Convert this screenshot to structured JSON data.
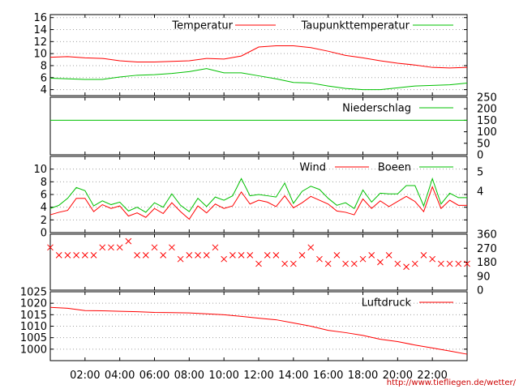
{
  "footer_url": "http://www.tiefliegen.de/wetter/",
  "colors": {
    "red": "#ff0000",
    "green": "#00c000",
    "grid": "#a0a0a0",
    "url": "#cc0000"
  },
  "x_axis": {
    "range_hours": [
      0,
      24
    ],
    "tick_labels": [
      "02:00",
      "04:00",
      "06:00",
      "08:00",
      "10:00",
      "12:00",
      "14:00",
      "16:00",
      "18:00",
      "20:00",
      "22:00"
    ],
    "tick_hours": [
      2,
      4,
      6,
      8,
      10,
      12,
      14,
      16,
      18,
      20,
      22
    ]
  },
  "chart_data": [
    {
      "type": "line",
      "panel": "temperature",
      "ylim": [
        3,
        16.5
      ],
      "yticks": [
        4,
        6,
        8,
        10,
        12,
        14,
        16
      ],
      "grid": true,
      "legend_placement": "top",
      "x": [
        0,
        1,
        2,
        3,
        4,
        5,
        6,
        7,
        8,
        9,
        10,
        11,
        12,
        13,
        14,
        15,
        16,
        17,
        18,
        19,
        20,
        21,
        22,
        23,
        24
      ],
      "series": [
        {
          "name": "Temperatur",
          "color": "#ff0000",
          "values": [
            9.4,
            9.5,
            9.3,
            9.2,
            8.8,
            8.6,
            8.6,
            8.7,
            8.8,
            9.2,
            9.1,
            9.6,
            11.1,
            11.3,
            11.3,
            11.0,
            10.4,
            9.7,
            9.3,
            8.8,
            8.4,
            8.1,
            7.7,
            7.6,
            7.7
          ]
        },
        {
          "name": "Taupunkttemperatur",
          "color": "#00c000",
          "values": [
            5.9,
            5.8,
            5.7,
            5.7,
            6.1,
            6.4,
            6.5,
            6.7,
            7.0,
            7.5,
            6.8,
            6.8,
            6.3,
            5.8,
            5.2,
            5.1,
            4.6,
            4.2,
            4.0,
            4.0,
            4.3,
            4.6,
            4.7,
            4.8,
            5.1
          ]
        }
      ]
    },
    {
      "type": "line",
      "panel": "precipitation",
      "ylim": [
        0,
        250
      ],
      "yticks": [
        0,
        50,
        100,
        150,
        200,
        250
      ],
      "grid": false,
      "legend_placement": "top-right",
      "x": [
        0,
        24
      ],
      "series": [
        {
          "name": "Niederschlag",
          "color": "#00c000",
          "values": [
            150,
            150
          ]
        }
      ]
    },
    {
      "type": "line",
      "panel": "wind",
      "ylim": [
        0,
        12
      ],
      "yticks": [
        0,
        2,
        4,
        6,
        8,
        10
      ],
      "right_labels": [
        "5",
        "4"
      ],
      "grid": true,
      "legend_placement": "top",
      "x": [
        0,
        0.5,
        1,
        1.5,
        2,
        2.5,
        3,
        3.5,
        4,
        4.5,
        5,
        5.5,
        6,
        6.5,
        7,
        7.5,
        8,
        8.5,
        9,
        9.5,
        10,
        10.5,
        11,
        11.5,
        12,
        12.5,
        13,
        13.5,
        14,
        14.5,
        15,
        15.5,
        16,
        16.5,
        17,
        17.5,
        18,
        18.5,
        19,
        19.5,
        20,
        20.5,
        21,
        21.5,
        22,
        22.5,
        23,
        23.5,
        24
      ],
      "series": [
        {
          "name": "Wind",
          "color": "#ff0000",
          "values": [
            2.8,
            3.2,
            3.5,
            5.4,
            5.4,
            3.3,
            4.4,
            3.8,
            4.2,
            2.6,
            3.1,
            2.4,
            3.8,
            3.0,
            4.7,
            3.3,
            2.1,
            4.2,
            3.1,
            4.5,
            3.8,
            4.2,
            6.4,
            4.5,
            5.1,
            4.8,
            4.1,
            5.8,
            3.9,
            4.7,
            5.7,
            5.1,
            4.5,
            3.4,
            3.2,
            2.8,
            5.3,
            3.8,
            5.0,
            4.1,
            4.9,
            5.7,
            4.9,
            3.3,
            7.2,
            3.8,
            5.1,
            4.3,
            4.3
          ]
        },
        {
          "name": "Boeen",
          "color": "#00c000",
          "values": [
            3.8,
            4.3,
            5.4,
            7.1,
            6.6,
            4.2,
            5.0,
            4.4,
            4.8,
            3.4,
            4.0,
            3.2,
            4.7,
            4.0,
            6.1,
            4.3,
            3.3,
            5.4,
            4.1,
            5.6,
            5.1,
            5.8,
            8.5,
            5.8,
            6.0,
            5.8,
            5.6,
            7.8,
            4.6,
            6.5,
            7.3,
            6.8,
            5.4,
            4.3,
            4.7,
            3.8,
            6.7,
            4.8,
            6.2,
            6.1,
            6.1,
            7.4,
            7.4,
            4.2,
            8.5,
            4.5,
            6.2,
            5.5,
            5.5
          ]
        }
      ]
    },
    {
      "type": "scatter",
      "panel": "wind-direction",
      "ylim": [
        0,
        360
      ],
      "yticks": [
        0,
        90,
        180,
        270,
        360
      ],
      "grid": false,
      "marker": "x",
      "x": [
        0,
        0.5,
        1,
        1.5,
        2,
        2.5,
        3,
        3.5,
        4,
        4.5,
        5,
        5.5,
        6,
        6.5,
        7,
        7.5,
        8,
        8.5,
        9,
        9.5,
        10,
        10.5,
        11,
        11.5,
        12,
        12.5,
        13,
        13.5,
        14,
        14.5,
        15,
        15.5,
        16,
        16.5,
        17,
        17.5,
        18,
        18.5,
        19,
        19.5,
        20,
        20.5,
        21,
        21.5,
        22,
        22.5,
        23,
        23.5,
        24
      ],
      "series": [
        {
          "name": "",
          "color": "#ff0000",
          "values": [
            275,
            225,
            225,
            225,
            225,
            225,
            275,
            275,
            275,
            315,
            225,
            225,
            275,
            225,
            275,
            200,
            225,
            225,
            225,
            275,
            200,
            225,
            225,
            225,
            170,
            225,
            225,
            170,
            170,
            225,
            275,
            200,
            170,
            225,
            170,
            170,
            200,
            225,
            180,
            225,
            170,
            150,
            170,
            225,
            200,
            170,
            170,
            170,
            170
          ]
        }
      ]
    },
    {
      "type": "line",
      "panel": "pressure",
      "ylim": [
        995,
        1025
      ],
      "yticks": [
        1000,
        1005,
        1010,
        1015,
        1020,
        1025
      ],
      "grid": true,
      "legend_placement": "top-right",
      "x": [
        0,
        1,
        2,
        3,
        4,
        5,
        6,
        7,
        8,
        9,
        10,
        11,
        12,
        13,
        14,
        15,
        16,
        17,
        18,
        19,
        20,
        21,
        22,
        23,
        24
      ],
      "series": [
        {
          "name": "Luftdruck",
          "color": "#ff0000",
          "values": [
            1018.2,
            1017.8,
            1016.8,
            1016.7,
            1016.5,
            1016.3,
            1016.0,
            1015.9,
            1015.8,
            1015.4,
            1015.0,
            1014.3,
            1013.5,
            1012.8,
            1011.4,
            1010.0,
            1008.2,
            1007.2,
            1006.0,
            1004.3,
            1003.3,
            1001.8,
            1000.5,
            999.2,
            997.8
          ]
        }
      ]
    }
  ]
}
